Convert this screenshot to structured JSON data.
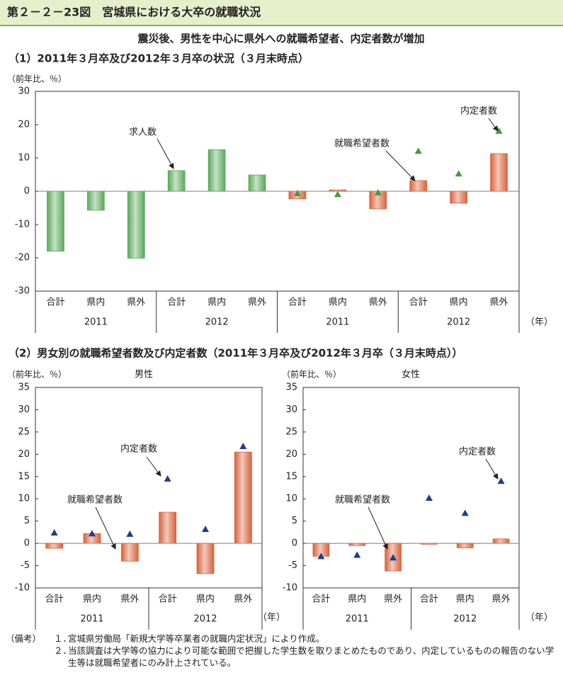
{
  "header": {
    "title": "第２－２－23図　宮城県における大卒の就職状況",
    "subtitle": "震災後、男性を中心に県外への就職希望者、内定者数が増加"
  },
  "section1": "（1）2011年３月卒及び2012年３月卒の状況（３月末時点）",
  "section2": "（2）男女別の就職希望者数及び内定者数（2011年３月卒及び2012年３月卒（３月末時点））",
  "chart_data": [
    {
      "type": "bar",
      "y_label": "（前年比、％）",
      "x_unit": "（年）",
      "categories": [
        "合計",
        "県内",
        "県外",
        "合計",
        "県内",
        "県外",
        "合計",
        "県内",
        "県外",
        "合計",
        "県内",
        "県外"
      ],
      "group_labels": [
        "2011",
        "2012",
        "2011",
        "2012"
      ],
      "series": [
        {
          "name": "求人数",
          "kind": "bar",
          "color": "#5aa85a",
          "values": [
            -18,
            -5.7,
            -20.1,
            6.2,
            12.5,
            4.9,
            null,
            null,
            null,
            null,
            null,
            null
          ]
        },
        {
          "name": "就職希望者数",
          "kind": "bar",
          "color": "#d9623b",
          "values": [
            null,
            null,
            null,
            null,
            null,
            null,
            -2.3,
            0.4,
            -5.3,
            3.2,
            -3.6,
            11.3
          ]
        },
        {
          "name": "内定者数",
          "kind": "triangle",
          "color": "#3f9e3f",
          "values": [
            null,
            null,
            null,
            null,
            null,
            null,
            -0.6,
            -0.9,
            -0.4,
            12.1,
            5.3,
            18.1
          ]
        }
      ],
      "ylim": [
        -30,
        30
      ],
      "yticks": [
        30,
        20,
        10,
        0,
        -10,
        -20,
        -30
      ],
      "grid": false
    },
    {
      "type": "bar",
      "title": "男性",
      "y_label": "（前年比、％）",
      "x_unit": "（年）",
      "categories": [
        "合計",
        "県内",
        "県外",
        "合計",
        "県内",
        "県外"
      ],
      "group_labels": [
        "2011",
        "2012"
      ],
      "series": [
        {
          "name": "就職希望者数",
          "kind": "bar",
          "color": "#d9623b",
          "values": [
            -1.1,
            2.2,
            -4.0,
            7.0,
            -6.8,
            20.5
          ]
        },
        {
          "name": "内定者数",
          "kind": "triangle",
          "color": "#1f3c88",
          "values": [
            2.4,
            2.2,
            2.1,
            14.5,
            3.2,
            21.8
          ]
        }
      ],
      "ylim": [
        -10,
        35
      ],
      "yticks": [
        35,
        30,
        25,
        20,
        15,
        10,
        5,
        0,
        -5,
        -10
      ],
      "grid": false
    },
    {
      "type": "bar",
      "title": "女性",
      "y_label": "（前年比、％）",
      "x_unit": "（年）",
      "categories": [
        "合計",
        "県内",
        "県外",
        "合計",
        "県内",
        "県外"
      ],
      "group_labels": [
        "2011",
        "2012"
      ],
      "series": [
        {
          "name": "就職希望者数",
          "kind": "bar",
          "color": "#d9623b",
          "values": [
            -2.9,
            -0.5,
            -6.2,
            -0.2,
            -1.0,
            1.0
          ]
        },
        {
          "name": "内定者数",
          "kind": "triangle",
          "color": "#1f3c88",
          "values": [
            -2.9,
            -2.6,
            -3.2,
            10.2,
            6.8,
            14.0
          ]
        }
      ],
      "ylim": [
        -10,
        35
      ],
      "yticks": [
        35,
        30,
        25,
        20,
        15,
        10,
        5,
        0,
        -5,
        -10
      ],
      "grid": false
    }
  ],
  "notes": {
    "label": "（備考）",
    "items": [
      {
        "number": "１．",
        "text": "宮城県労働局「新規大学等卒業者の就職内定状況」により作成。"
      },
      {
        "number": "２．",
        "text": "当該調査は大学等の協力により可能な範囲で把握した学生数を取りまとめたものであり、内定しているものの報告のない学生等は就職希望者にのみ計上されている。"
      }
    ]
  }
}
